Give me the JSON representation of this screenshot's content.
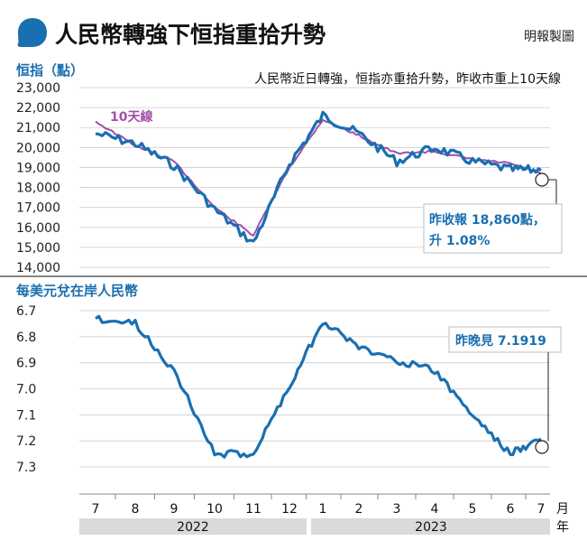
{
  "header": {
    "title": "人民幣轉強下恒指重拾升勢",
    "credit": "明報製圖"
  },
  "colors": {
    "primary_line": "#1a6fb0",
    "moving_average": "#a24fa8",
    "grid": "#c9cdd1",
    "year_band": "#d9dadb",
    "annotation_border": "#bcbcbc"
  },
  "chart_data": [
    {
      "type": "line",
      "title": "恒指（點）",
      "subtitle": "人民幣近日轉強，恒指亦重拾升勢，昨收市重上10天線",
      "ylim": [
        14000,
        23000
      ],
      "y_ticks": [
        "23,000",
        "22,000",
        "21,000",
        "20,000",
        "19,000",
        "18,000",
        "17,000",
        "16,000",
        "15,000",
        "14,000"
      ],
      "x": [
        "2022-07",
        "2022-08",
        "2022-09",
        "2022-10",
        "2022-11",
        "2022-12",
        "2023-01",
        "2023-02",
        "2023-03",
        "2023-04",
        "2023-05",
        "2023-06",
        "2023-07"
      ],
      "series": [
        {
          "name": "",
          "values": [
            20700,
            20200,
            19100,
            16900,
            15200,
            19200,
            21600,
            20700,
            19300,
            20000,
            19300,
            18900,
            18860
          ]
        },
        {
          "name": "10天線",
          "values": [
            21300,
            20100,
            19300,
            17000,
            15600,
            19000,
            21400,
            20600,
            19700,
            19800,
            19400,
            19200,
            18700
          ]
        }
      ],
      "annotation": {
        "line1": "昨收報 18,860點，",
        "line2": "升 1.08%"
      }
    },
    {
      "type": "line",
      "title": "每美元兌在岸人民幣",
      "ylim": [
        6.7,
        7.3
      ],
      "y_inverted": true,
      "y_ticks": [
        "6.7",
        "6.8",
        "6.9",
        "7.0",
        "7.1",
        "7.2",
        "7.3"
      ],
      "x": [
        "2022-07",
        "2022-08",
        "2022-09",
        "2022-10",
        "2022-11",
        "2022-12",
        "2023-01",
        "2023-02",
        "2023-03",
        "2023-04",
        "2023-05",
        "2023-06",
        "2023-07"
      ],
      "series": [
        {
          "name": "",
          "values": [
            6.73,
            6.75,
            6.93,
            7.25,
            7.25,
            6.99,
            6.74,
            6.84,
            6.89,
            6.93,
            7.1,
            7.25,
            7.1919
          ]
        }
      ],
      "annotation": {
        "line1": "昨晚見 7.1919"
      }
    }
  ],
  "x_axis": {
    "months": [
      "7",
      "8",
      "9",
      "10",
      "11",
      "12",
      "1",
      "2",
      "3",
      "4",
      "5",
      "6",
      "7"
    ],
    "month_unit": "月",
    "years": [
      "2022",
      "2023"
    ],
    "year_unit": "年"
  }
}
